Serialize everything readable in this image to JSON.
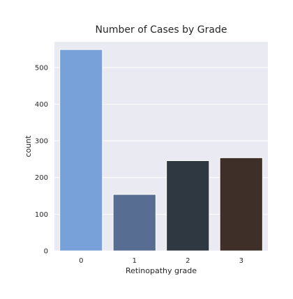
{
  "chart_data": {
    "type": "bar",
    "title": "Number of Cases by Grade",
    "xlabel": "Retinopathy grade",
    "ylabel": "count",
    "categories": [
      "0",
      "1",
      "2",
      "3"
    ],
    "values": [
      549,
      154,
      246,
      254
    ],
    "bar_colors": [
      "#78a1d9",
      "#586d92",
      "#2f3740",
      "#3e3028"
    ],
    "ylim": [
      0,
      570
    ],
    "yticks": [
      0,
      100,
      200,
      300,
      400,
      500
    ],
    "ytick_labels": [
      "0",
      "100",
      "200",
      "300",
      "400",
      "500"
    ],
    "grid": true,
    "background_color": "#eaeaf2",
    "legend": "none"
  }
}
